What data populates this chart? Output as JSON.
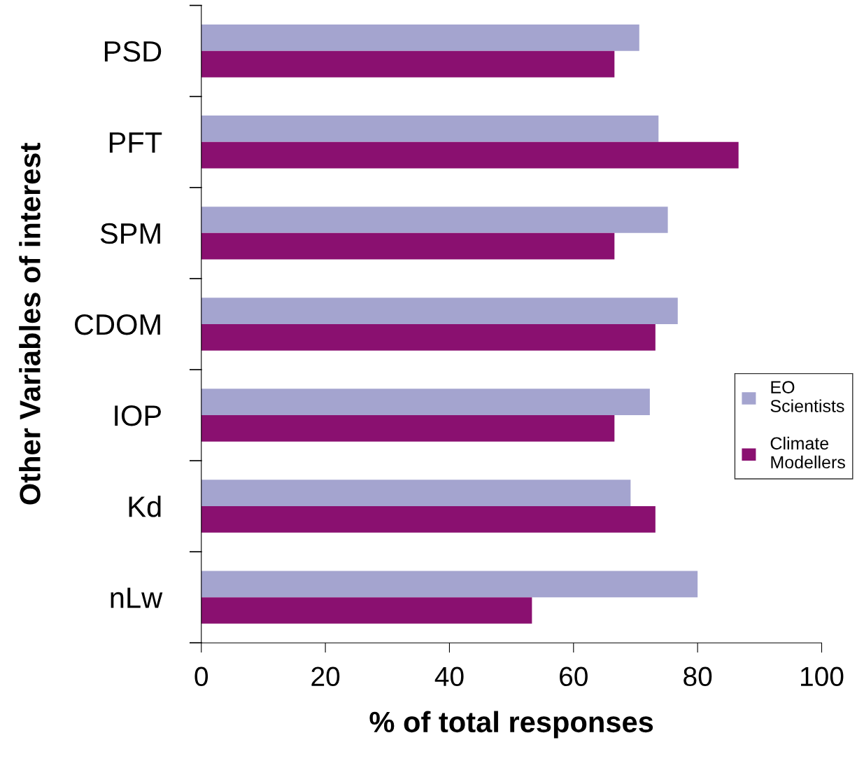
{
  "chart_data": {
    "type": "bar",
    "orientation": "horizontal",
    "xlabel": "% of total responses",
    "ylabel": "Other Variables of interest",
    "categories": [
      "PSD",
      "PFT",
      "SPM",
      "CDOM",
      "IOP",
      "Kd",
      "nLw"
    ],
    "series": [
      {
        "name": "EO Scientists",
        "color": "#a4a4cf",
        "values": [
          70.6,
          73.7,
          75.2,
          76.8,
          72.3,
          69.2,
          80.0
        ]
      },
      {
        "name": "Climate Modellers",
        "color": "#8a1070",
        "values": [
          66.6,
          86.6,
          66.6,
          73.2,
          66.6,
          73.2,
          53.3
        ]
      }
    ],
    "xlim": [
      0,
      100
    ],
    "xticks": [
      0,
      20,
      40,
      60,
      80,
      100
    ],
    "grid": false,
    "legend": "right"
  }
}
